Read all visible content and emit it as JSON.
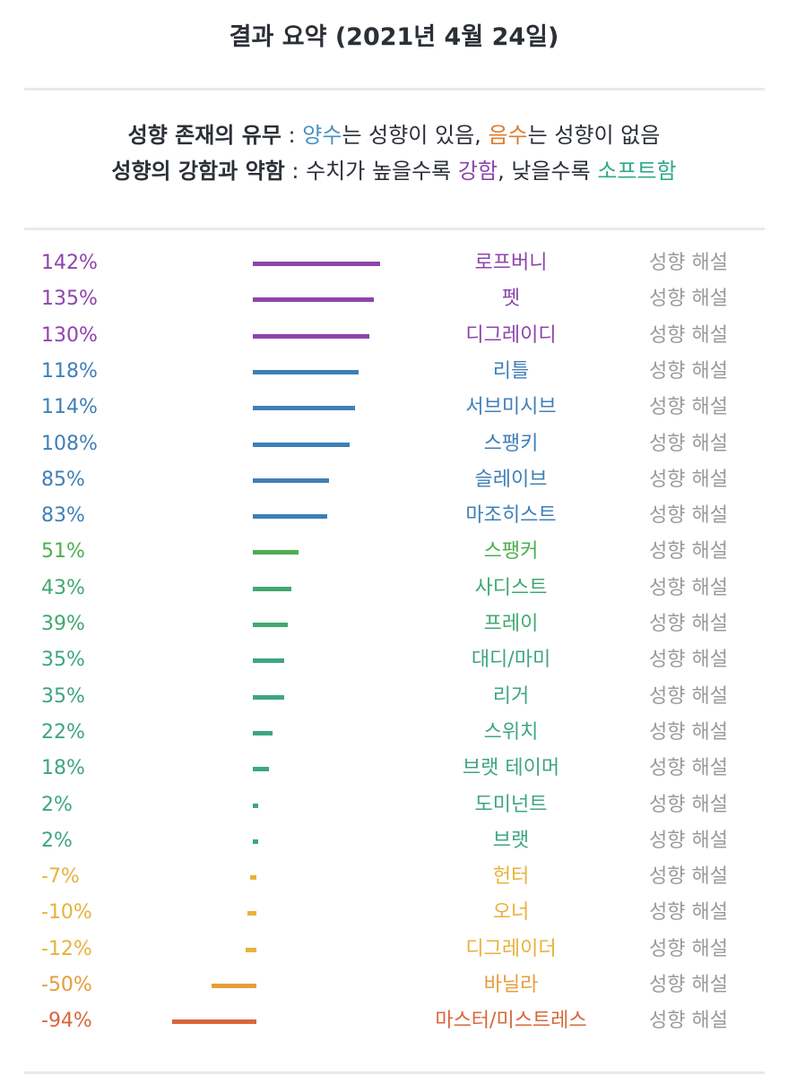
{
  "header": {
    "title": "결과 요약 (2021년 4월 24일)"
  },
  "legend": {
    "line1": {
      "label": "성향 존재의 유무",
      "sep": " : ",
      "positive_word": "양수",
      "positive_rest": "는 성향이 있음, ",
      "negative_word": "음수",
      "negative_rest": "는 성향이 없음"
    },
    "line2": {
      "label": "성향의 강함과 약함",
      "sep": " : ",
      "mid1": "수치가 높을수록 ",
      "strong_word": "강함",
      "mid2": ", 낮을수록 ",
      "soft_word": "소프트함"
    }
  },
  "colors": {
    "positive_word": "#4a90c2",
    "negative_word": "#e07b2e",
    "strong_word": "#8e44ad",
    "soft_word": "#2fa98a"
  },
  "row_desc_label": "성향 해설",
  "chart_data": {
    "type": "bar",
    "orientation": "horizontal",
    "unit": "%",
    "categories": [
      "로프버니",
      "펫",
      "디그레이디",
      "리틀",
      "서브미시브",
      "스팽키",
      "슬레이브",
      "마조히스트",
      "스팽커",
      "사디스트",
      "프레이",
      "대디/마미",
      "리거",
      "스위치",
      "브랫 테이머",
      "도미넌트",
      "브랫",
      "헌터",
      "오너",
      "디그레이더",
      "바닐라",
      "마스터/미스트레스"
    ],
    "values": [
      142,
      135,
      130,
      118,
      114,
      108,
      85,
      83,
      51,
      43,
      39,
      35,
      35,
      22,
      18,
      2,
      2,
      -7,
      -10,
      -12,
      -50,
      -94
    ],
    "labels": [
      "142%",
      "135%",
      "130%",
      "118%",
      "114%",
      "108%",
      "85%",
      "83%",
      "51%",
      "43%",
      "39%",
      "35%",
      "35%",
      "22%",
      "18%",
      "2%",
      "2%",
      "-7%",
      "-10%",
      "-12%",
      "-50%",
      "-94%"
    ],
    "colors": [
      "#8e44ad",
      "#8e44ad",
      "#8e44ad",
      "#3f7fb8",
      "#3f7fb8",
      "#3f7fb8",
      "#3f7fb8",
      "#3f7fb8",
      "#4caf50",
      "#41a870",
      "#41a870",
      "#3ea583",
      "#3ea583",
      "#3ea583",
      "#3ea583",
      "#3ea583",
      "#3ea583",
      "#e8b23a",
      "#e8b23a",
      "#e8b23a",
      "#e89c3a",
      "#d9663a"
    ]
  }
}
